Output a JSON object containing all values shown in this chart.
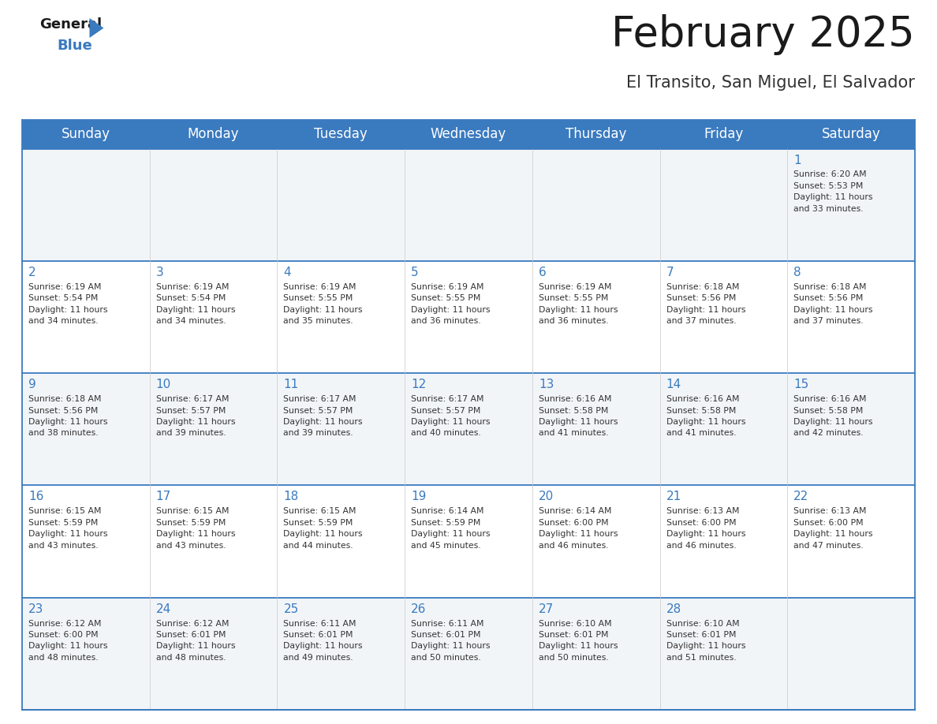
{
  "title": "February 2025",
  "subtitle": "El Transito, San Miguel, El Salvador",
  "header_color": "#3a7abf",
  "header_text_color": "#ffffff",
  "cell_bg_color": "#f0f4f8",
  "text_color": "#333333",
  "day_number_color": "#3a7abf",
  "line_color": "#3a7abf",
  "border_color": "#bbbbbb",
  "days_of_week": [
    "Sunday",
    "Monday",
    "Tuesday",
    "Wednesday",
    "Thursday",
    "Friday",
    "Saturday"
  ],
  "weeks": [
    [
      {
        "day": null,
        "info": null
      },
      {
        "day": null,
        "info": null
      },
      {
        "day": null,
        "info": null
      },
      {
        "day": null,
        "info": null
      },
      {
        "day": null,
        "info": null
      },
      {
        "day": null,
        "info": null
      },
      {
        "day": 1,
        "info": "Sunrise: 6:20 AM\nSunset: 5:53 PM\nDaylight: 11 hours\nand 33 minutes."
      }
    ],
    [
      {
        "day": 2,
        "info": "Sunrise: 6:19 AM\nSunset: 5:54 PM\nDaylight: 11 hours\nand 34 minutes."
      },
      {
        "day": 3,
        "info": "Sunrise: 6:19 AM\nSunset: 5:54 PM\nDaylight: 11 hours\nand 34 minutes."
      },
      {
        "day": 4,
        "info": "Sunrise: 6:19 AM\nSunset: 5:55 PM\nDaylight: 11 hours\nand 35 minutes."
      },
      {
        "day": 5,
        "info": "Sunrise: 6:19 AM\nSunset: 5:55 PM\nDaylight: 11 hours\nand 36 minutes."
      },
      {
        "day": 6,
        "info": "Sunrise: 6:19 AM\nSunset: 5:55 PM\nDaylight: 11 hours\nand 36 minutes."
      },
      {
        "day": 7,
        "info": "Sunrise: 6:18 AM\nSunset: 5:56 PM\nDaylight: 11 hours\nand 37 minutes."
      },
      {
        "day": 8,
        "info": "Sunrise: 6:18 AM\nSunset: 5:56 PM\nDaylight: 11 hours\nand 37 minutes."
      }
    ],
    [
      {
        "day": 9,
        "info": "Sunrise: 6:18 AM\nSunset: 5:56 PM\nDaylight: 11 hours\nand 38 minutes."
      },
      {
        "day": 10,
        "info": "Sunrise: 6:17 AM\nSunset: 5:57 PM\nDaylight: 11 hours\nand 39 minutes."
      },
      {
        "day": 11,
        "info": "Sunrise: 6:17 AM\nSunset: 5:57 PM\nDaylight: 11 hours\nand 39 minutes."
      },
      {
        "day": 12,
        "info": "Sunrise: 6:17 AM\nSunset: 5:57 PM\nDaylight: 11 hours\nand 40 minutes."
      },
      {
        "day": 13,
        "info": "Sunrise: 6:16 AM\nSunset: 5:58 PM\nDaylight: 11 hours\nand 41 minutes."
      },
      {
        "day": 14,
        "info": "Sunrise: 6:16 AM\nSunset: 5:58 PM\nDaylight: 11 hours\nand 41 minutes."
      },
      {
        "day": 15,
        "info": "Sunrise: 6:16 AM\nSunset: 5:58 PM\nDaylight: 11 hours\nand 42 minutes."
      }
    ],
    [
      {
        "day": 16,
        "info": "Sunrise: 6:15 AM\nSunset: 5:59 PM\nDaylight: 11 hours\nand 43 minutes."
      },
      {
        "day": 17,
        "info": "Sunrise: 6:15 AM\nSunset: 5:59 PM\nDaylight: 11 hours\nand 43 minutes."
      },
      {
        "day": 18,
        "info": "Sunrise: 6:15 AM\nSunset: 5:59 PM\nDaylight: 11 hours\nand 44 minutes."
      },
      {
        "day": 19,
        "info": "Sunrise: 6:14 AM\nSunset: 5:59 PM\nDaylight: 11 hours\nand 45 minutes."
      },
      {
        "day": 20,
        "info": "Sunrise: 6:14 AM\nSunset: 6:00 PM\nDaylight: 11 hours\nand 46 minutes."
      },
      {
        "day": 21,
        "info": "Sunrise: 6:13 AM\nSunset: 6:00 PM\nDaylight: 11 hours\nand 46 minutes."
      },
      {
        "day": 22,
        "info": "Sunrise: 6:13 AM\nSunset: 6:00 PM\nDaylight: 11 hours\nand 47 minutes."
      }
    ],
    [
      {
        "day": 23,
        "info": "Sunrise: 6:12 AM\nSunset: 6:00 PM\nDaylight: 11 hours\nand 48 minutes."
      },
      {
        "day": 24,
        "info": "Sunrise: 6:12 AM\nSunset: 6:01 PM\nDaylight: 11 hours\nand 48 minutes."
      },
      {
        "day": 25,
        "info": "Sunrise: 6:11 AM\nSunset: 6:01 PM\nDaylight: 11 hours\nand 49 minutes."
      },
      {
        "day": 26,
        "info": "Sunrise: 6:11 AM\nSunset: 6:01 PM\nDaylight: 11 hours\nand 50 minutes."
      },
      {
        "day": 27,
        "info": "Sunrise: 6:10 AM\nSunset: 6:01 PM\nDaylight: 11 hours\nand 50 minutes."
      },
      {
        "day": 28,
        "info": "Sunrise: 6:10 AM\nSunset: 6:01 PM\nDaylight: 11 hours\nand 51 minutes."
      },
      {
        "day": null,
        "info": null
      }
    ]
  ],
  "logo_general_color": "#1a1a1a",
  "logo_blue_color": "#3a7abf",
  "logo_triangle_color": "#3a7abf",
  "title_fontsize": 38,
  "subtitle_fontsize": 15,
  "header_fontsize": 12,
  "day_number_fontsize": 11,
  "info_fontsize": 7.8
}
